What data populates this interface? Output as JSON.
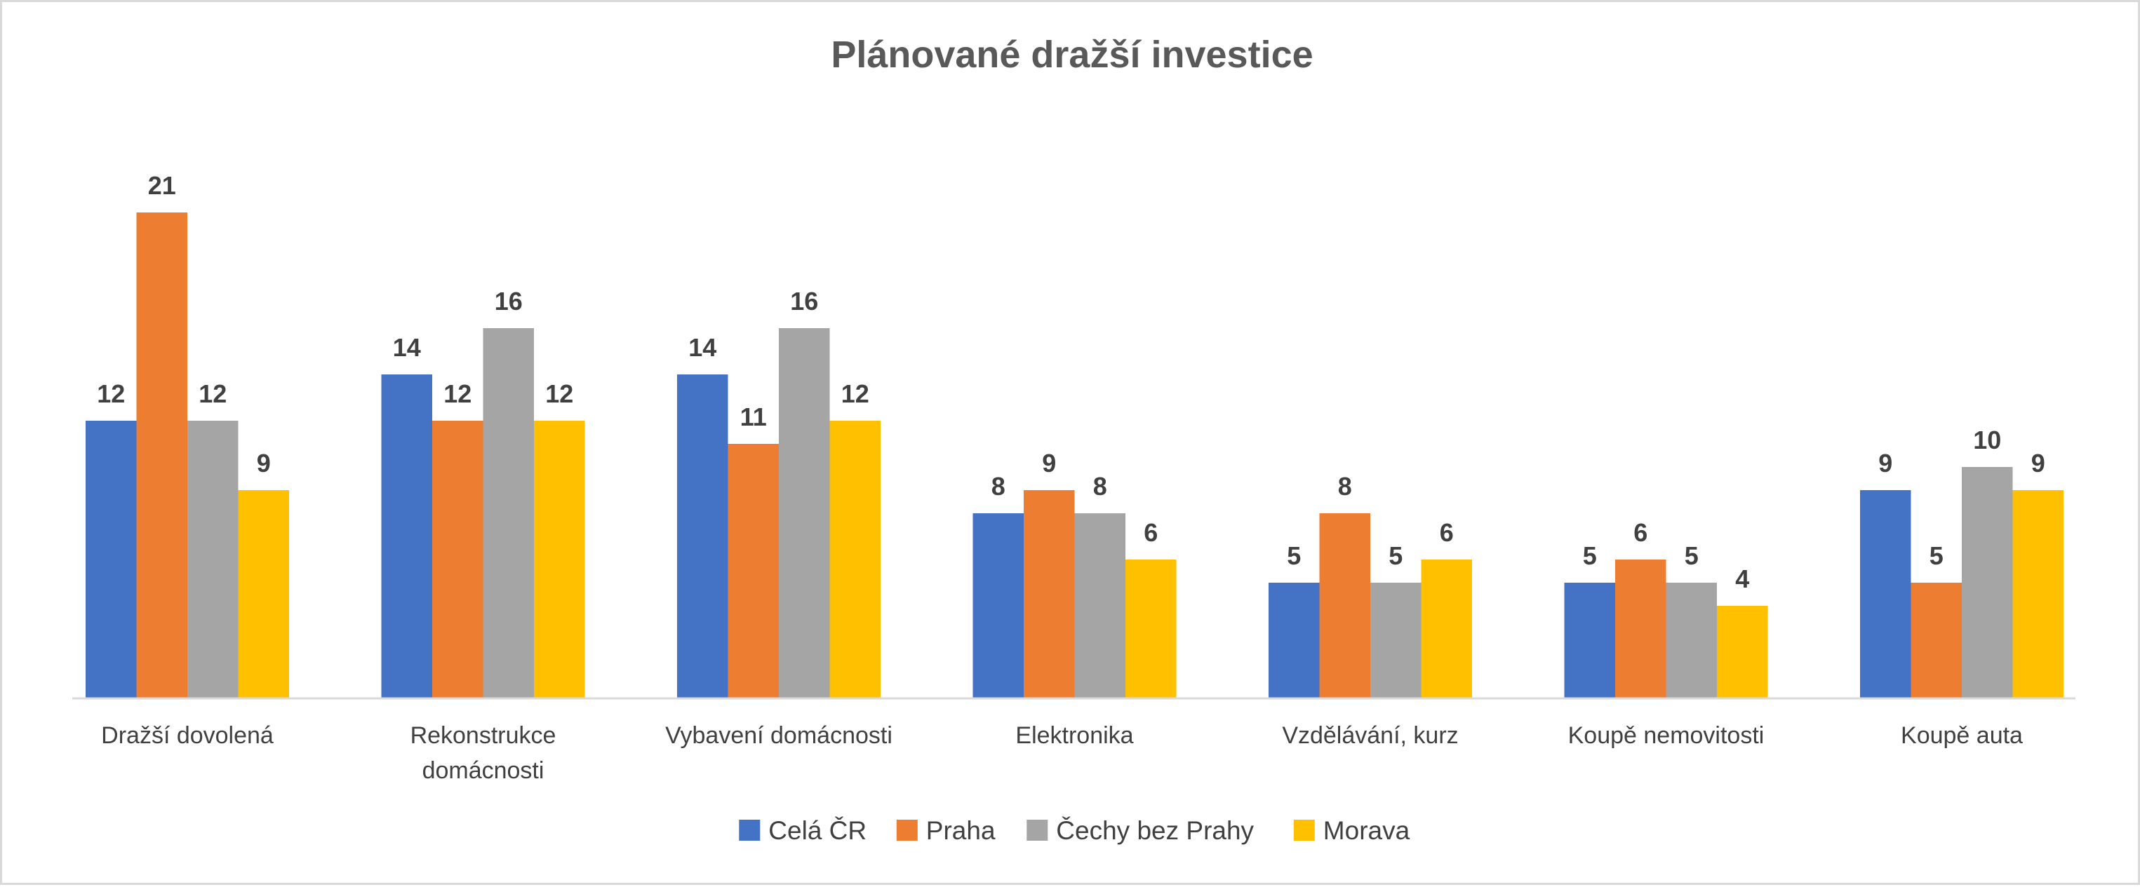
{
  "chart_data": {
    "type": "bar",
    "title": "Plánované dražší investice",
    "categories": [
      [
        "Dražší dovolená"
      ],
      [
        "Rekonstrukce",
        "domácnosti"
      ],
      [
        "Vybavení domácnosti"
      ],
      [
        "Elektronika"
      ],
      [
        "Vzdělávání, kurz"
      ],
      [
        "Koupě nemovitosti"
      ],
      [
        "Koupě auta"
      ]
    ],
    "series": [
      {
        "name": "Celá ČR",
        "color": "#4472C4",
        "values": [
          12,
          14,
          14,
          8,
          5,
          5,
          9
        ]
      },
      {
        "name": "Praha",
        "color": "#ED7D31",
        "values": [
          21,
          12,
          11,
          9,
          8,
          6,
          5
        ]
      },
      {
        "name": "Čechy bez Prahy",
        "color": "#A5A5A5",
        "values": [
          12,
          16,
          16,
          8,
          5,
          5,
          10
        ]
      },
      {
        "name": "Morava",
        "color": "#FFC000",
        "values": [
          9,
          12,
          12,
          6,
          6,
          4,
          9
        ]
      }
    ],
    "data_label_values": [
      [
        12,
        14,
        14,
        8,
        5,
        5,
        9
      ],
      [
        21,
        12,
        11,
        9,
        8,
        6,
        5
      ],
      [
        12,
        16,
        16,
        8,
        5,
        5,
        10
      ],
      [
        9,
        12,
        12,
        6,
        6,
        4,
        9
      ]
    ],
    "ylim": [
      0,
      22
    ],
    "grid": false,
    "legend_position": "bottom",
    "data_labels": true
  }
}
